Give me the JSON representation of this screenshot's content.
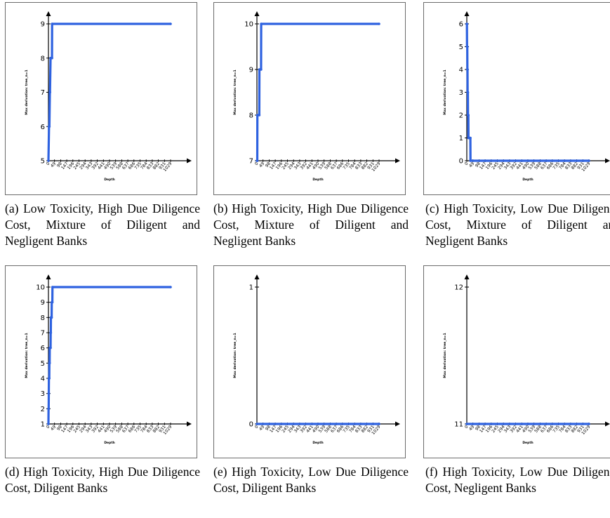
{
  "chart_data": [
    {
      "type": "line",
      "caption": "(a) Low Toxicity, High Due Diligence Cost, Mixture of Diligent and Negligent Banks",
      "xlabel": "Depth",
      "ylabel": "Max derivation: tree_n=1",
      "x_ticks": [
        "0",
        "49",
        "98",
        "147",
        "196",
        "245",
        "294",
        "343",
        "392",
        "441",
        "490",
        "539",
        "588",
        "637",
        "686",
        "735",
        "784",
        "833",
        "882",
        "931",
        "1029"
      ],
      "y_ticks": [
        "5",
        "6",
        "7",
        "8",
        "9"
      ],
      "ylim": [
        5,
        9
      ],
      "series": [
        {
          "x": [
            0,
            5,
            8,
            12,
            13,
            18,
            19,
            30,
            31,
            1029
          ],
          "y": [
            5,
            6,
            6,
            7,
            7,
            8,
            8,
            8,
            9,
            9
          ]
        }
      ]
    },
    {
      "type": "line",
      "caption": "(b) High Toxicity, High Due Diligence Cost, Mixture of Diligent and Negligent Banks",
      "xlabel": "Depth",
      "ylabel": "Max derivation: tree_n=1",
      "x_ticks": [
        "0",
        "49",
        "98",
        "147",
        "196",
        "245",
        "294",
        "343",
        "392",
        "441",
        "490",
        "539",
        "588",
        "637",
        "686",
        "735",
        "784",
        "833",
        "882",
        "931",
        "1029"
      ],
      "y_ticks": [
        "7",
        "8",
        "9",
        "10"
      ],
      "ylim": [
        7,
        10
      ],
      "series": [
        {
          "x": [
            0,
            3,
            4,
            20,
            21,
            35,
            36,
            1029
          ],
          "y": [
            7,
            7,
            8,
            8,
            9,
            9,
            10,
            10
          ]
        }
      ]
    },
    {
      "type": "line",
      "caption": "(c) High Toxicity, Low Due Diligence Cost, Mixture of Diligent and Negligent Banks",
      "xlabel": "Depth",
      "ylabel": "Max derivation: tree_n=1",
      "x_ticks": [
        "0",
        "49",
        "98",
        "147",
        "196",
        "245",
        "294",
        "343",
        "392",
        "441",
        "490",
        "539",
        "588",
        "637",
        "686",
        "735",
        "784",
        "833",
        "882",
        "931",
        "1029"
      ],
      "y_ticks": [
        "0",
        "1",
        "2",
        "3",
        "4",
        "5",
        "6"
      ],
      "ylim": [
        0,
        6
      ],
      "series": [
        {
          "x": [
            0,
            1,
            2,
            4,
            5,
            6,
            7,
            8,
            9,
            10,
            11,
            13,
            14,
            18,
            19,
            30,
            31,
            1029
          ],
          "y": [
            6,
            6,
            5,
            5,
            4,
            4,
            3,
            3,
            3,
            2,
            2,
            2,
            1,
            1,
            1,
            1,
            0,
            0
          ]
        }
      ]
    },
    {
      "type": "line",
      "caption": "(d) High Toxicity, High Due Diligence Cost, Diligent Banks",
      "xlabel": "Depth",
      "ylabel": "Max derivation: tree_n=1",
      "x_ticks": [
        "0",
        "49",
        "98",
        "147",
        "196",
        "245",
        "294",
        "343",
        "392",
        "441",
        "490",
        "539",
        "588",
        "637",
        "686",
        "735",
        "784",
        "833",
        "882",
        "931",
        "1029"
      ],
      "y_ticks": [
        "1",
        "2",
        "3",
        "4",
        "5",
        "6",
        "7",
        "8",
        "9",
        "10"
      ],
      "ylim": [
        1,
        10
      ],
      "series": [
        {
          "x": [
            0,
            1,
            2,
            3,
            4,
            7,
            8,
            10,
            11,
            18,
            19,
            20,
            21,
            27,
            28,
            33,
            34,
            1029
          ],
          "y": [
            1,
            2,
            2,
            3,
            4,
            4,
            5,
            5,
            6,
            6,
            7,
            7,
            8,
            8,
            9,
            9,
            10,
            10
          ]
        }
      ]
    },
    {
      "type": "line",
      "caption": "(e) High Toxicity, Low Due Diligence Cost, Diligent Banks",
      "xlabel": "Depth",
      "ylabel": "Max derivation: tree_n=1",
      "x_ticks": [
        "0",
        "49",
        "98",
        "147",
        "196",
        "245",
        "294",
        "343",
        "392",
        "441",
        "490",
        "539",
        "588",
        "637",
        "686",
        "735",
        "784",
        "833",
        "882",
        "931",
        "1029"
      ],
      "y_ticks": [
        "0",
        "1"
      ],
      "ylim": [
        0,
        1
      ],
      "series": [
        {
          "x": [
            0,
            1029
          ],
          "y": [
            0,
            0
          ]
        }
      ]
    },
    {
      "type": "line",
      "caption": "(f) High Toxicity, Low Due Diligence Cost, Negligent Banks",
      "xlabel": "Depth",
      "ylabel": "Max derivation: tree_n=1",
      "x_ticks": [
        "0",
        "49",
        "98",
        "147",
        "196",
        "245",
        "294",
        "343",
        "392",
        "441",
        "490",
        "539",
        "588",
        "637",
        "686",
        "735",
        "784",
        "833",
        "882",
        "931",
        "1029"
      ],
      "y_ticks": [
        "11",
        "12"
      ],
      "ylim": [
        11,
        12
      ],
      "series": [
        {
          "x": [
            0,
            1029
          ],
          "y": [
            11,
            11
          ]
        }
      ]
    }
  ],
  "colors": {
    "series": "#2e62e0",
    "axis": "#000000",
    "frame": "#6b6b6b"
  }
}
